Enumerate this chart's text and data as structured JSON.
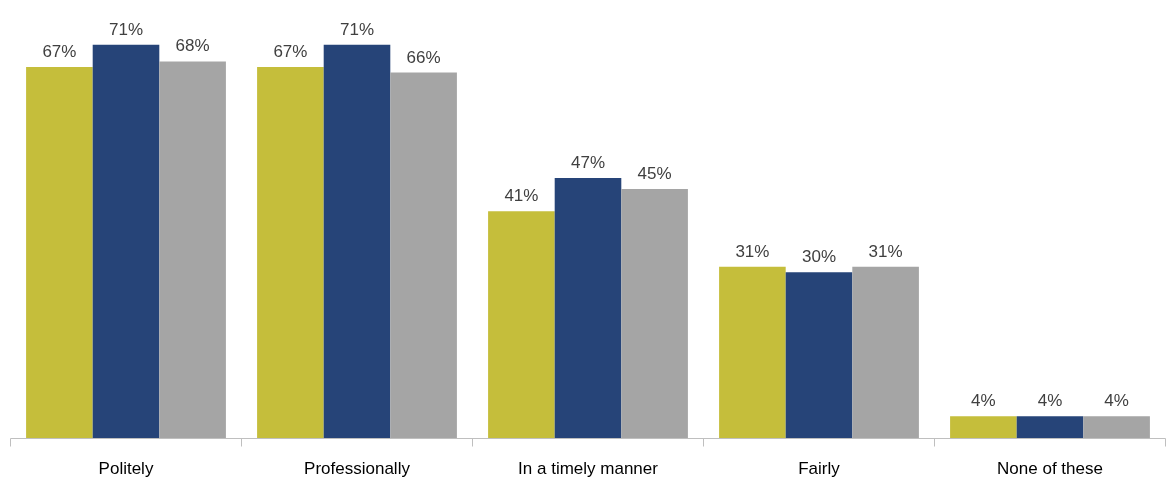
{
  "chart_data": {
    "type": "bar",
    "categories": [
      "Politely",
      "Professionally",
      "In a timely manner",
      "Fairly",
      "None of these"
    ],
    "series": [
      {
        "color": "#c5be3b",
        "values": [
          67,
          67,
          41,
          31,
          4
        ],
        "value_labels": [
          "67%",
          "67%",
          "41%",
          "31%",
          "4%"
        ]
      },
      {
        "color": "#264478",
        "values": [
          71,
          71,
          47,
          30,
          4
        ],
        "value_labels": [
          "71%",
          "71%",
          "47%",
          "30%",
          "4%"
        ]
      },
      {
        "color": "#a5a5a5",
        "values": [
          68,
          66,
          45,
          31,
          4
        ],
        "value_labels": [
          "68%",
          "66%",
          "45%",
          "31%",
          "4%"
        ]
      }
    ]
  }
}
